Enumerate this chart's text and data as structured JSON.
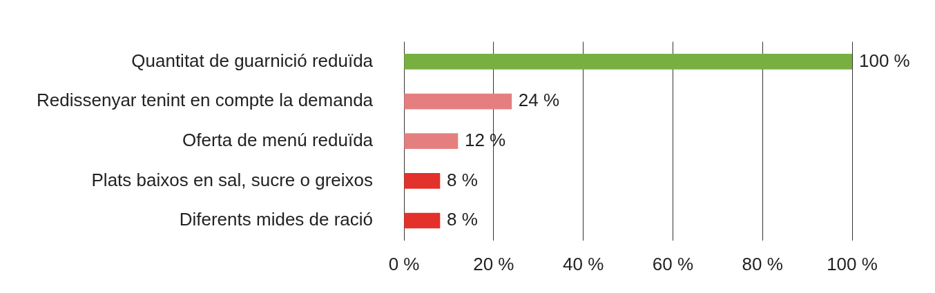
{
  "chart_data": {
    "type": "bar",
    "orientation": "horizontal",
    "categories": [
      "Quantitat de guarnició reduïda",
      "Redissenyar tenint en compte la demanda",
      "Oferta de menú reduïda",
      "Plats baixos en sal, sucre o greixos",
      "Diferents mides de ració"
    ],
    "values": [
      100,
      24,
      12,
      8,
      8
    ],
    "colors": [
      "#77b041",
      "#e57f7f",
      "#e57f7f",
      "#e3312b",
      "#e3312b"
    ],
    "value_labels": [
      "100 %",
      "24 %",
      "12 %",
      "8 %",
      "8 %"
    ],
    "xlim": [
      0,
      100
    ],
    "xticks": [
      {
        "value": 0,
        "label": "0 %"
      },
      {
        "value": 20,
        "label": "20 %"
      },
      {
        "value": 40,
        "label": "40 %"
      },
      {
        "value": 60,
        "label": "60 %"
      },
      {
        "value": 80,
        "label": "80 %"
      },
      {
        "value": 100,
        "label": "100 %"
      }
    ],
    "grid": "x",
    "legend": false
  }
}
